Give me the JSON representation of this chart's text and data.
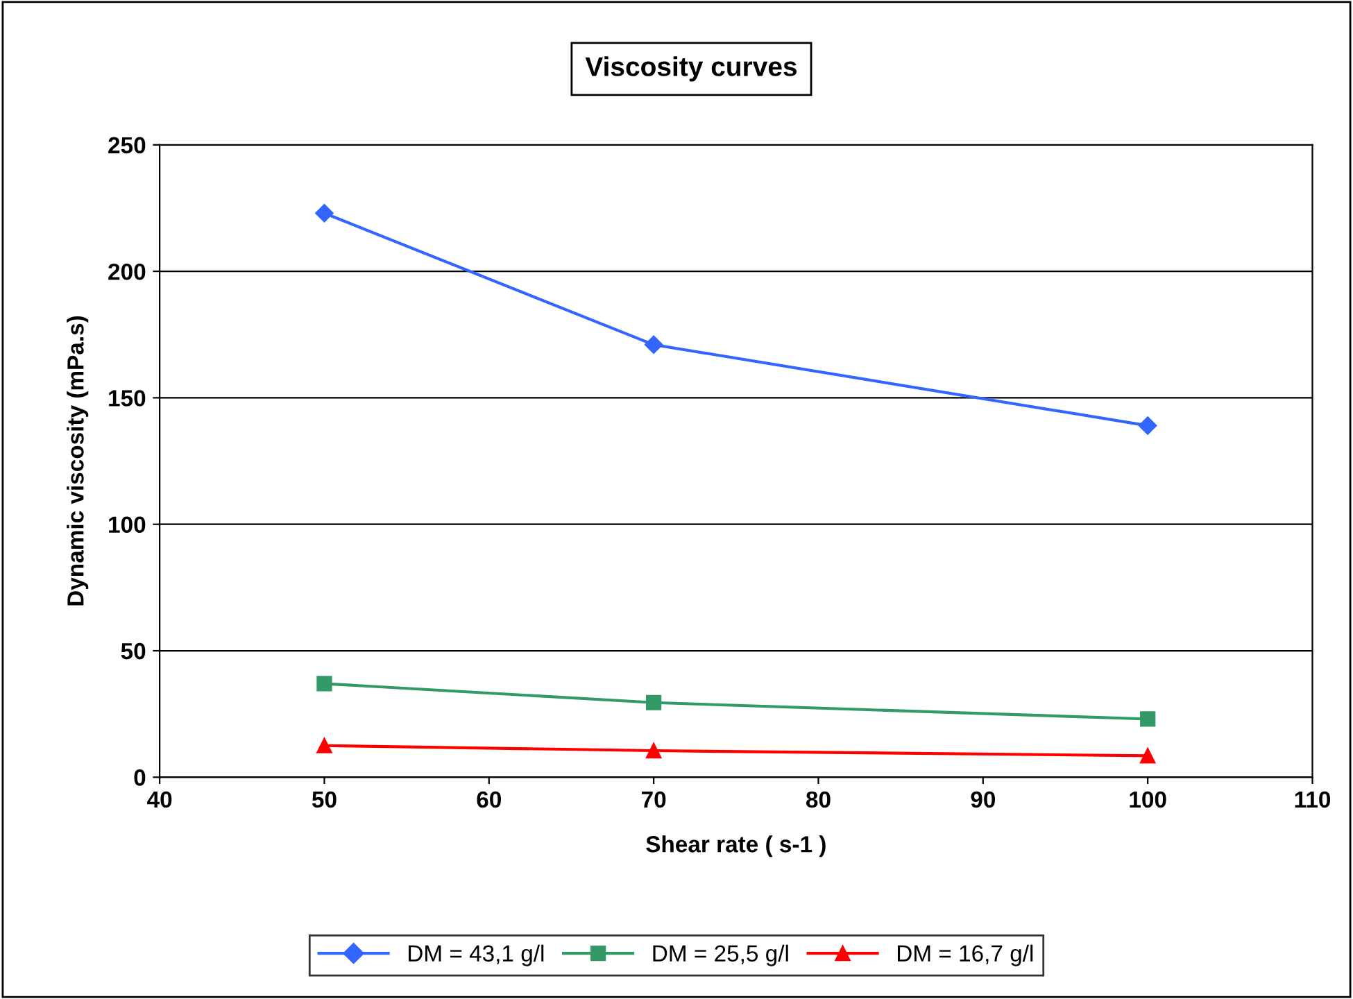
{
  "chart_data": {
    "type": "line",
    "title": "Viscosity curves",
    "xlabel": "Shear rate ( s-1 )",
    "ylabel": "Dynamic viscosity (mPa.s)",
    "x": [
      50,
      70,
      100
    ],
    "series": [
      {
        "name": "DM = 43,1 g/l",
        "color": "#3366ff",
        "marker": "diamond",
        "values": [
          223,
          171,
          139
        ]
      },
      {
        "name": "DM = 25,5 g/l",
        "color": "#339966",
        "marker": "square",
        "values": [
          37,
          29.5,
          23
        ]
      },
      {
        "name": "DM = 16,7 g/l",
        "color": "#ff0000",
        "marker": "triangle",
        "values": [
          12.5,
          10.5,
          8.5
        ]
      }
    ],
    "xlim": [
      40,
      110
    ],
    "xticks": [
      40,
      50,
      60,
      70,
      80,
      90,
      100,
      110
    ],
    "ylim": [
      0,
      250
    ],
    "yticks": [
      0,
      50,
      100,
      150,
      200,
      250
    ],
    "grid": "y",
    "legend": "bottom",
    "line_style": "solid"
  }
}
